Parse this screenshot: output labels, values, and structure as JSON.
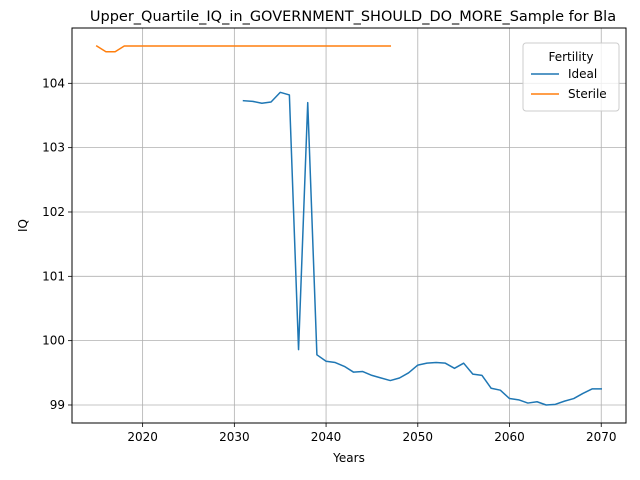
{
  "chart_data": {
    "type": "line",
    "title": "Upper_Quartile_IQ_in_GOVERNMENT_SHOULD_DO_MORE_Sample for Bla",
    "xlabel": "Years",
    "ylabel": "IQ",
    "xlim": [
      2012.3,
      2072.7
    ],
    "ylim": [
      98.72,
      104.86
    ],
    "xticks": [
      2020,
      2030,
      2040,
      2050,
      2060,
      2070
    ],
    "yticks": [
      99,
      100,
      101,
      102,
      103,
      104
    ],
    "grid": true,
    "legend": {
      "title": "Fertility",
      "placement": "top-right"
    },
    "series": [
      {
        "name": "Ideal",
        "color": "#1f77b4",
        "x": [
          2031,
          2032,
          2033,
          2034,
          2035,
          2036,
          2037,
          2038,
          2039,
          2040,
          2041,
          2042,
          2043,
          2044,
          2045,
          2046,
          2047,
          2048,
          2049,
          2050,
          2051,
          2052,
          2053,
          2054,
          2055,
          2056,
          2057,
          2058,
          2059,
          2060,
          2061,
          2062,
          2063,
          2064,
          2065,
          2066,
          2067,
          2068,
          2069,
          2070
        ],
        "y": [
          103.73,
          103.72,
          103.69,
          103.71,
          103.86,
          103.82,
          99.86,
          103.7,
          99.78,
          99.68,
          99.66,
          99.6,
          99.51,
          99.52,
          99.46,
          99.42,
          99.38,
          99.42,
          99.5,
          99.62,
          99.65,
          99.66,
          99.65,
          99.57,
          99.65,
          99.48,
          99.46,
          99.26,
          99.23,
          99.1,
          99.08,
          99.03,
          99.05,
          99.0,
          99.01,
          99.06,
          99.1,
          99.18,
          99.25,
          99.25
        ]
      },
      {
        "name": "Sterile",
        "color": "#ff7f0e",
        "x": [
          2015,
          2016,
          2017,
          2018,
          2019,
          2020,
          2021,
          2022,
          2023,
          2024,
          2025,
          2026,
          2027,
          2028,
          2029,
          2030,
          2031,
          2032,
          2033,
          2034,
          2035,
          2036,
          2037,
          2038,
          2039,
          2040,
          2041,
          2042,
          2043,
          2044,
          2045,
          2046,
          2047
        ],
        "y": [
          104.58,
          104.49,
          104.49,
          104.58,
          104.58,
          104.58,
          104.58,
          104.58,
          104.58,
          104.58,
          104.58,
          104.58,
          104.58,
          104.58,
          104.58,
          104.58,
          104.58,
          104.58,
          104.58,
          104.58,
          104.58,
          104.58,
          104.58,
          104.58,
          104.58,
          104.58,
          104.58,
          104.58,
          104.58,
          104.58,
          104.58,
          104.58,
          104.58
        ]
      }
    ]
  }
}
